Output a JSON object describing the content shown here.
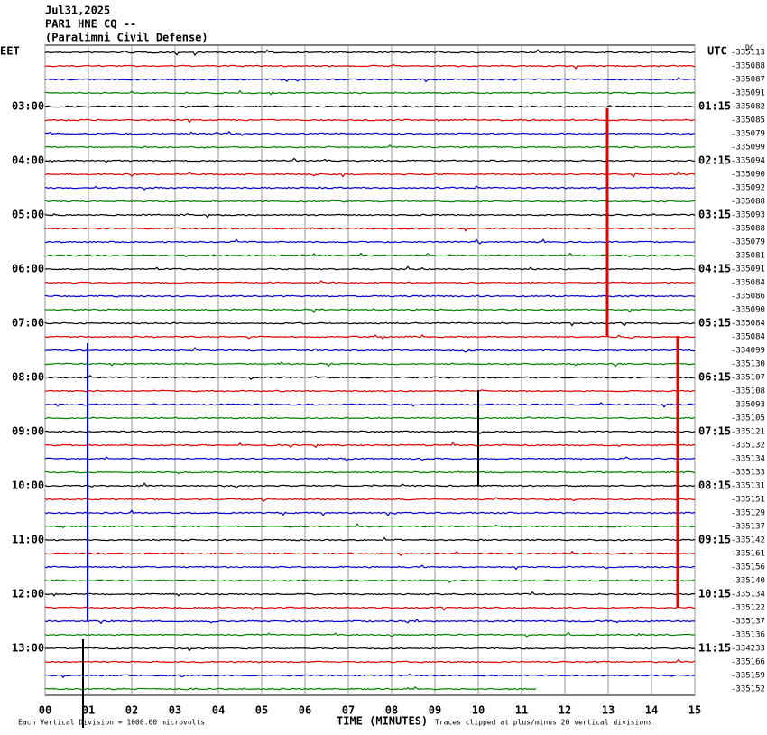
{
  "header": {
    "date": "Jul31,2025",
    "station": "PAR1 HNE CQ --",
    "site": "(Paralimni Civil Defense)"
  },
  "left_zone": "EET",
  "right_zone": "UTC",
  "dc_label": "DC",
  "left_times": [
    "03:00",
    "04:00",
    "05:00",
    "06:00",
    "07:00",
    "08:00",
    "09:00",
    "10:00",
    "11:00",
    "12:00",
    "13:00"
  ],
  "right_times": [
    "01:15",
    "02:15",
    "03:15",
    "04:15",
    "05:15",
    "06:15",
    "07:15",
    "08:15",
    "09:15",
    "10:15",
    "11:15"
  ],
  "trace_offsets": [
    "-335113",
    "-335088",
    "-335087",
    "-335091",
    "-335082",
    "-335085",
    "-335079",
    "-335099",
    "-335094",
    "-335090",
    "-335092",
    "-335088",
    "-335093",
    "-335088",
    "-335079",
    "-335081",
    "-335091",
    "-335084",
    "-335086",
    "-335090",
    "-335084",
    "-335084",
    "-334099",
    "-335130",
    "-335107",
    "-335108",
    "-335093",
    "-335105",
    "-335121",
    "-335132",
    "-335134",
    "-335133",
    "-335131",
    "-335151",
    "-335129",
    "-335137",
    "-335142",
    "-335161",
    "-335156",
    "-335140",
    "-335134",
    "-335122",
    "-335137",
    "-335136",
    "-334233",
    "-335166",
    "-335159",
    "-335152"
  ],
  "x_ticks": [
    "00",
    "01",
    "02",
    "03",
    "04",
    "05",
    "06",
    "07",
    "08",
    "09",
    "10",
    "11",
    "12",
    "13",
    "14",
    "15"
  ],
  "x_axis_label": "TIME (MINUTES)",
  "scale_note": "Each Vertical Division = 1000.00 microvolts",
  "clip_note": "Traces clipped at plus/minus 20 vertical divisions"
}
